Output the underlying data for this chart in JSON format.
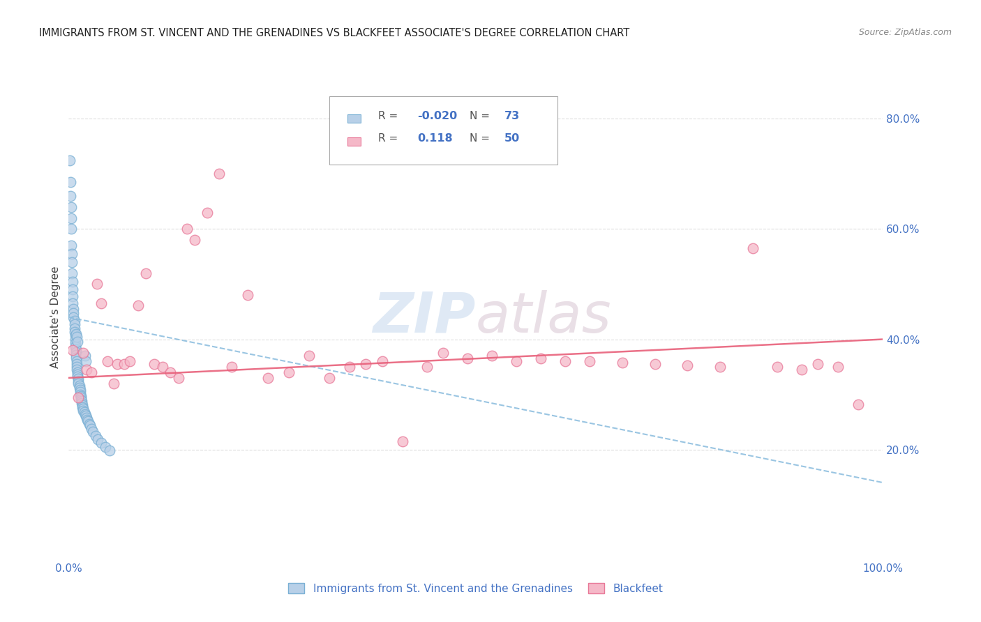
{
  "title": "IMMIGRANTS FROM ST. VINCENT AND THE GRENADINES VS BLACKFEET ASSOCIATE'S DEGREE CORRELATION CHART",
  "source": "Source: ZipAtlas.com",
  "ylabel": "Associate's Degree",
  "legend_blue_R": "-0.020",
  "legend_blue_N": "73",
  "legend_pink_R": "0.118",
  "legend_pink_N": "50",
  "blue_color": "#b8d0e8",
  "pink_color": "#f5b8c8",
  "blue_edge_color": "#7ab0d4",
  "pink_edge_color": "#e87898",
  "blue_line_color": "#88bbdd",
  "pink_line_color": "#e8607a",
  "title_color": "#222222",
  "axis_label_color": "#4472c4",
  "watermark_color": "#d0dff0",
  "ylim": [
    0.0,
    0.88
  ],
  "xlim": [
    0.0,
    1.0
  ],
  "yticks": [
    0.2,
    0.4,
    0.6,
    0.8
  ],
  "ytick_labels": [
    "20.0%",
    "40.0%",
    "60.0%",
    "80.0%"
  ],
  "xticks": [
    0.0,
    0.2,
    0.4,
    0.6,
    0.8,
    1.0
  ],
  "xtick_labels": [
    "0.0%",
    "",
    "",
    "",
    "",
    "100.0%"
  ],
  "blue_x": [
    0.001,
    0.002,
    0.002,
    0.003,
    0.003,
    0.003,
    0.003,
    0.004,
    0.004,
    0.004,
    0.005,
    0.005,
    0.005,
    0.005,
    0.006,
    0.006,
    0.006,
    0.007,
    0.007,
    0.007,
    0.007,
    0.008,
    0.008,
    0.008,
    0.008,
    0.009,
    0.009,
    0.009,
    0.009,
    0.01,
    0.01,
    0.01,
    0.01,
    0.011,
    0.011,
    0.011,
    0.012,
    0.012,
    0.012,
    0.013,
    0.013,
    0.014,
    0.014,
    0.014,
    0.015,
    0.015,
    0.015,
    0.016,
    0.016,
    0.017,
    0.017,
    0.018,
    0.018,
    0.019,
    0.02,
    0.021,
    0.022,
    0.023,
    0.024,
    0.025,
    0.026,
    0.028,
    0.03,
    0.033,
    0.036,
    0.04,
    0.045,
    0.05,
    0.02,
    0.021,
    0.009,
    0.01,
    0.011
  ],
  "blue_y": [
    0.725,
    0.685,
    0.66,
    0.64,
    0.62,
    0.6,
    0.57,
    0.555,
    0.54,
    0.52,
    0.505,
    0.49,
    0.478,
    0.465,
    0.455,
    0.448,
    0.44,
    0.434,
    0.427,
    0.42,
    0.413,
    0.407,
    0.4,
    0.393,
    0.387,
    0.382,
    0.377,
    0.372,
    0.366,
    0.36,
    0.355,
    0.35,
    0.345,
    0.34,
    0.336,
    0.332,
    0.328,
    0.324,
    0.32,
    0.316,
    0.312,
    0.308,
    0.304,
    0.3,
    0.297,
    0.294,
    0.291,
    0.288,
    0.284,
    0.281,
    0.277,
    0.274,
    0.271,
    0.268,
    0.264,
    0.261,
    0.258,
    0.254,
    0.251,
    0.247,
    0.244,
    0.238,
    0.232,
    0.225,
    0.219,
    0.212,
    0.205,
    0.198,
    0.37,
    0.36,
    0.41,
    0.405,
    0.395
  ],
  "pink_x": [
    0.005,
    0.012,
    0.018,
    0.022,
    0.028,
    0.035,
    0.04,
    0.048,
    0.055,
    0.06,
    0.068,
    0.075,
    0.085,
    0.095,
    0.105,
    0.115,
    0.125,
    0.135,
    0.145,
    0.155,
    0.17,
    0.185,
    0.2,
    0.22,
    0.245,
    0.27,
    0.295,
    0.32,
    0.345,
    0.365,
    0.385,
    0.41,
    0.44,
    0.46,
    0.49,
    0.52,
    0.55,
    0.58,
    0.61,
    0.64,
    0.68,
    0.72,
    0.76,
    0.8,
    0.84,
    0.87,
    0.9,
    0.92,
    0.945,
    0.97
  ],
  "pink_y": [
    0.38,
    0.295,
    0.375,
    0.345,
    0.34,
    0.5,
    0.465,
    0.36,
    0.32,
    0.355,
    0.355,
    0.36,
    0.462,
    0.52,
    0.355,
    0.35,
    0.34,
    0.33,
    0.6,
    0.58,
    0.63,
    0.7,
    0.35,
    0.48,
    0.33,
    0.34,
    0.37,
    0.33,
    0.35,
    0.355,
    0.36,
    0.215,
    0.35,
    0.375,
    0.365,
    0.37,
    0.36,
    0.365,
    0.36,
    0.36,
    0.358,
    0.355,
    0.352,
    0.35,
    0.565,
    0.35,
    0.345,
    0.355,
    0.35,
    0.282
  ],
  "blue_trend_y_start": 0.44,
  "blue_trend_y_end": 0.14,
  "pink_trend_y_start": 0.33,
  "pink_trend_y_end": 0.4,
  "background_color": "#ffffff",
  "grid_color": "#dddddd",
  "fig_width": 14.06,
  "fig_height": 8.92
}
